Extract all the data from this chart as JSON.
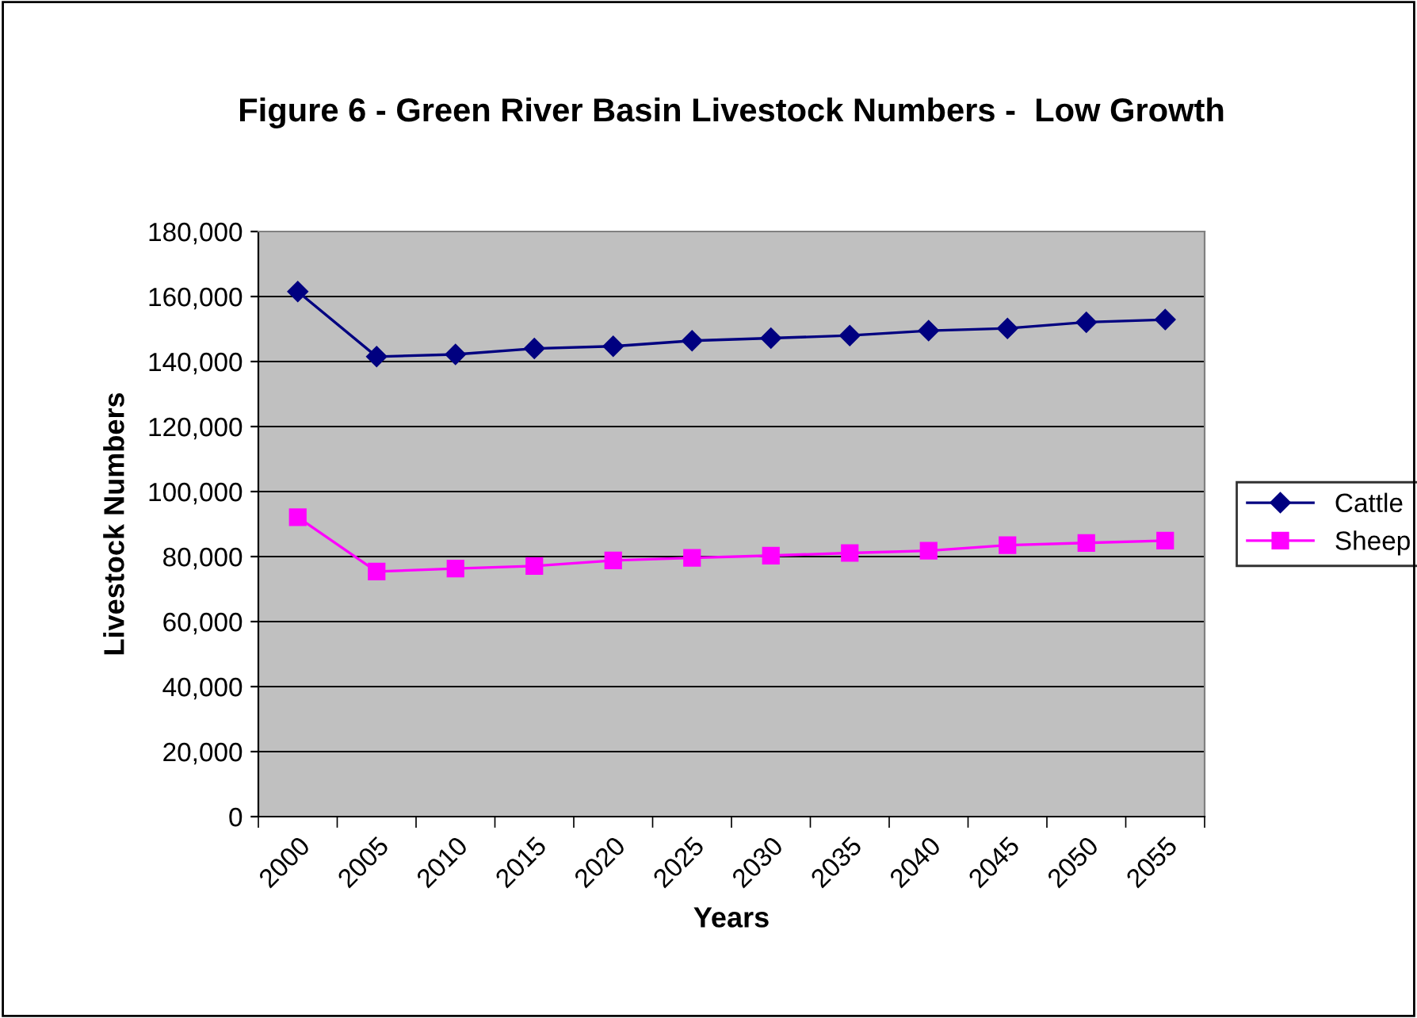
{
  "chart_data": {
    "type": "line",
    "title": "Figure 6 - Green River Basin Livestock Numbers -  Low Growth",
    "xlabel": "Years",
    "ylabel": "Livestock Numbers",
    "categories": [
      "2000",
      "2005",
      "2010",
      "2015",
      "2020",
      "2025",
      "2030",
      "2035",
      "2040",
      "2045",
      "2050",
      "2055"
    ],
    "series": [
      {
        "name": "Cattle",
        "color": "#000080",
        "marker": "diamond",
        "values": [
          161500,
          141500,
          142200,
          144000,
          144700,
          146400,
          147200,
          148000,
          149500,
          150200,
          152100,
          152900
        ]
      },
      {
        "name": "Sheep",
        "color": "#ff00ff",
        "marker": "square",
        "values": [
          92100,
          75400,
          76300,
          77100,
          78800,
          79600,
          80300,
          81100,
          81800,
          83500,
          84200,
          84900
        ]
      }
    ],
    "ylim": [
      0,
      180000
    ],
    "yticks": [
      {
        "value": 0,
        "label": "0"
      },
      {
        "value": 20000,
        "label": "20,000"
      },
      {
        "value": 40000,
        "label": "40,000"
      },
      {
        "value": 60000,
        "label": "60,000"
      },
      {
        "value": 80000,
        "label": "80,000"
      },
      {
        "value": 100000,
        "label": "100,000"
      },
      {
        "value": 120000,
        "label": "120,000"
      },
      {
        "value": 140000,
        "label": "140,000"
      },
      {
        "value": 160000,
        "label": "160,000"
      },
      {
        "value": 180000,
        "label": "180,000"
      }
    ],
    "grid": "y",
    "legend": "right",
    "line_style": "solid"
  }
}
